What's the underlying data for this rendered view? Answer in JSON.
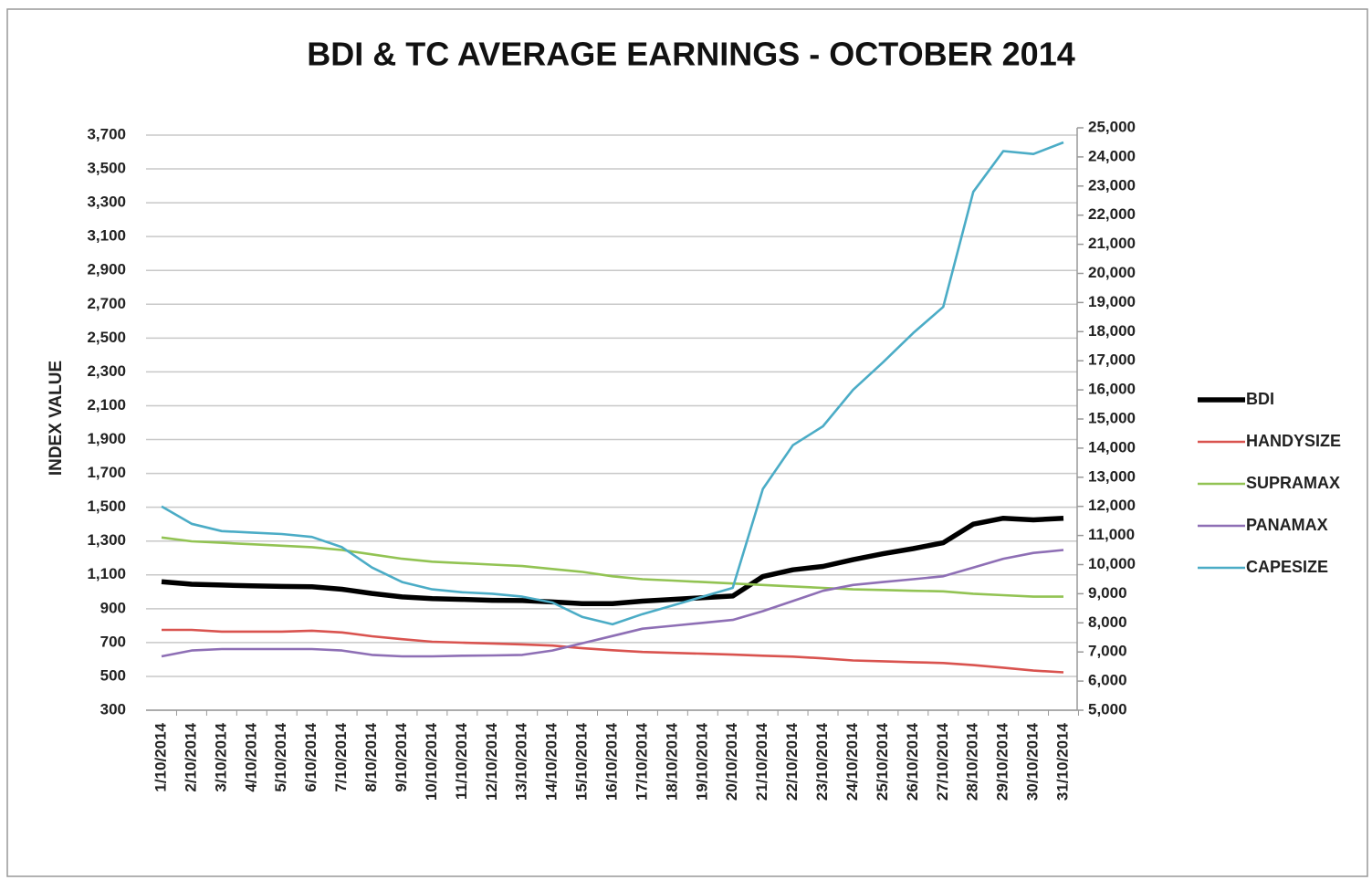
{
  "chart_data": {
    "type": "line",
    "title": "BDI & TC  AVERAGE EARNINGS - OCTOBER 2014",
    "y_label": "INDEX VALUE",
    "categories": [
      "1/10/2014",
      "2/10/2014",
      "3/10/2014",
      "4/10/2014",
      "5/10/2014",
      "6/10/2014",
      "7/10/2014",
      "8/10/2014",
      "9/10/2014",
      "10/10/2014",
      "11/10/2014",
      "12/10/2014",
      "13/10/2014",
      "14/10/2014",
      "15/10/2014",
      "16/10/2014",
      "17/10/2014",
      "18/10/2014",
      "19/10/2014",
      "20/10/2014",
      "21/10/2014",
      "22/10/2014",
      "23/10/2014",
      "24/10/2014",
      "25/10/2014",
      "26/10/2014",
      "27/10/2014",
      "28/10/2014",
      "29/10/2014",
      "30/10/2014",
      "31/10/2014"
    ],
    "ylim": [
      300,
      3700
    ],
    "yticks": [
      300,
      500,
      700,
      900,
      {
        "value": 1100,
        "label": "1,100"
      },
      {
        "value": 1300,
        "label": "1,300"
      },
      {
        "value": 1500,
        "label": "1,500"
      },
      {
        "value": 1700,
        "label": "1,700"
      },
      {
        "value": 1900,
        "label": "1,900"
      },
      {
        "value": 2100,
        "label": "2,100"
      },
      {
        "value": 2300,
        "label": "2,300"
      },
      {
        "value": 2500,
        "label": "2,500"
      },
      {
        "value": 2700,
        "label": "2,700"
      },
      {
        "value": 2900,
        "label": "2,900"
      },
      {
        "value": 3100,
        "label": "3,100"
      },
      {
        "value": 3300,
        "label": "3,300"
      },
      {
        "value": 3500,
        "label": "3,500"
      },
      {
        "value": 3700,
        "label": "3,700"
      }
    ],
    "y2lim": [
      5000,
      25000
    ],
    "y2ticks": [
      {
        "value": 5000,
        "label": "5,000"
      },
      {
        "value": 6000,
        "label": "6,000"
      },
      {
        "value": 7000,
        "label": "7,000"
      },
      {
        "value": 8000,
        "label": "8,000"
      },
      {
        "value": 9000,
        "label": "9,000"
      },
      {
        "value": 10000,
        "label": "10,000"
      },
      {
        "value": 11000,
        "label": "11,000"
      },
      {
        "value": 12000,
        "label": "12,000"
      },
      {
        "value": 13000,
        "label": "13,000"
      },
      {
        "value": 14000,
        "label": "14,000"
      },
      {
        "value": 15000,
        "label": "15,000"
      },
      {
        "value": 16000,
        "label": "16,000"
      },
      {
        "value": 17000,
        "label": "17,000"
      },
      {
        "value": 18000,
        "label": "18,000"
      },
      {
        "value": 19000,
        "label": "19,000"
      },
      {
        "value": 20000,
        "label": "20,000"
      },
      {
        "value": 21000,
        "label": "21,000"
      },
      {
        "value": 22000,
        "label": "22,000"
      },
      {
        "value": 23000,
        "label": "23,000"
      },
      {
        "value": 24000,
        "label": "24,000"
      },
      {
        "value": 25000,
        "label": "25,000"
      }
    ],
    "grid": true,
    "legend": "right",
    "series": [
      {
        "name": "BDI",
        "color": "#000000",
        "values": [
          1060,
          1045,
          1040,
          1035,
          1032,
          1030,
          1015,
          990,
          970,
          960,
          955,
          950,
          948,
          940,
          930,
          930,
          945,
          955,
          965,
          975,
          1090,
          1130,
          1150,
          1190,
          1225,
          1255,
          1290,
          1400,
          1435,
          1425,
          1435
        ]
      },
      {
        "name": "HANDYSIZE",
        "color": "#d9534f",
        "axis": "y2",
        "values": [
          7760,
          7760,
          7700,
          7700,
          7700,
          7730,
          7670,
          7540,
          7440,
          7350,
          7320,
          7290,
          7260,
          7220,
          7130,
          7060,
          7000,
          6970,
          6940,
          6910,
          6870,
          6840,
          6780,
          6710,
          6680,
          6650,
          6620,
          6550,
          6460,
          6360,
          6300
        ]
      },
      {
        "name": "SUPRAMAX",
        "color": "#92c353",
        "axis": "y2",
        "values": [
          10930,
          10800,
          10750,
          10700,
          10650,
          10600,
          10500,
          10350,
          10200,
          10100,
          10050,
          10000,
          9950,
          9850,
          9750,
          9600,
          9500,
          9450,
          9400,
          9350,
          9300,
          9250,
          9200,
          9150,
          9130,
          9100,
          9080,
          9000,
          8950,
          8900,
          8900
        ]
      },
      {
        "name": "PANAMAX",
        "color": "#8e6fb5",
        "axis": "y2",
        "values": [
          6850,
          7050,
          7100,
          7100,
          7100,
          7100,
          7050,
          6900,
          6850,
          6850,
          6870,
          6880,
          6900,
          7050,
          7300,
          7550,
          7800,
          7900,
          8000,
          8100,
          8400,
          8750,
          9100,
          9300,
          9400,
          9500,
          9600,
          9900,
          10200,
          10400,
          10500
        ]
      },
      {
        "name": "CAPESIZE",
        "color": "#4bacc6",
        "axis": "y2",
        "values": [
          12000,
          11400,
          11150,
          11100,
          11050,
          10950,
          10600,
          9900,
          9400,
          9150,
          9050,
          9000,
          8900,
          8700,
          8200,
          7950,
          8300,
          8600,
          8900,
          9200,
          12600,
          14100,
          14750,
          16000,
          16950,
          17950,
          18850,
          22800,
          24200,
          24100,
          24500
        ]
      }
    ]
  }
}
